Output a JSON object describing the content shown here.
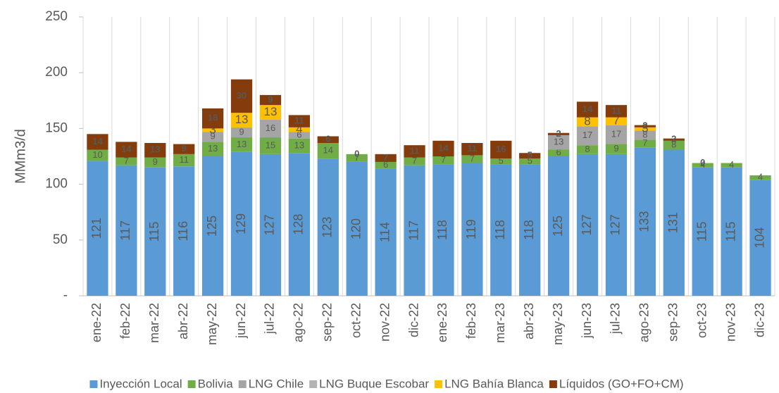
{
  "chart_data": {
    "type": "stacked_bar",
    "y_label": "MMm3/d",
    "categories": [
      "ene-22",
      "feb-22",
      "mar-22",
      "abr-22",
      "may-22",
      "jun-22",
      "jul-22",
      "ago-22",
      "sep-22",
      "oct-22",
      "nov-22",
      "dic-22",
      "ene-23",
      "feb-23",
      "mar-23",
      "abr-23",
      "may-23",
      "jun-23",
      "jul-23",
      "ago-23",
      "sep-23",
      "oct-23",
      "nov-23",
      "dic-23"
    ],
    "series": [
      {
        "name": "Inyección Local",
        "color": "#5b9bd5",
        "values": [
          121,
          117,
          115,
          116,
          125,
          129,
          127,
          128,
          123,
          120,
          114,
          117,
          118,
          119,
          118,
          118,
          125,
          127,
          127,
          133,
          131,
          115,
          115,
          104
        ]
      },
      {
        "name": "Bolivia",
        "color": "#70ad47",
        "values": [
          10,
          7,
          9,
          11,
          13,
          13,
          15,
          13,
          14,
          7,
          6,
          7,
          7,
          7,
          5,
          5,
          6,
          8,
          9,
          7,
          8,
          4,
          4,
          4
        ]
      },
      {
        "name": "LNG Chile",
        "color": "#a5a5a5",
        "values": [
          null,
          null,
          null,
          null,
          9,
          9,
          16,
          6,
          null,
          null,
          null,
          null,
          null,
          null,
          null,
          null,
          13,
          17,
          17,
          8,
          null,
          null,
          null,
          null
        ]
      },
      {
        "name": "LNG Buque Escobar",
        "color": "#b4b4b4",
        "values": [
          null,
          null,
          null,
          null,
          null,
          null,
          null,
          null,
          null,
          null,
          null,
          null,
          null,
          null,
          null,
          null,
          null,
          null,
          null,
          null,
          null,
          null,
          null,
          null
        ]
      },
      {
        "name": "LNG Bahía Blanca",
        "color": "#ffc000",
        "values": [
          null,
          null,
          null,
          null,
          3,
          13,
          13,
          4,
          null,
          null,
          null,
          null,
          null,
          null,
          null,
          null,
          null,
          8,
          7,
          3,
          null,
          null,
          null,
          null
        ]
      },
      {
        "name": "Líquidos (GO+FO+CM)",
        "color": "#843c0c",
        "values": [
          14,
          14,
          13,
          9,
          18,
          30,
          9,
          11,
          6,
          0,
          7,
          11,
          14,
          11,
          16,
          5,
          2,
          14,
          11,
          2,
          2,
          0,
          null,
          null
        ]
      }
    ],
    "ylim": [
      0,
      250
    ],
    "yticks": [
      {
        "value": 0,
        "label": "-"
      },
      50,
      100,
      150,
      200,
      250
    ]
  }
}
